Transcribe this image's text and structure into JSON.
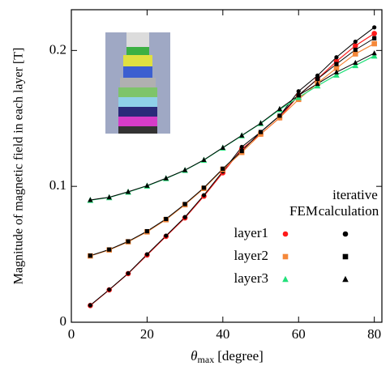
{
  "chart_data": {
    "type": "line",
    "xlabel": {
      "symbol": "θ",
      "subscript": "max",
      "unit": "[degree]"
    },
    "ylabel": "Magnitude of magnetic field in each layer [T]",
    "x": [
      5,
      10,
      15,
      20,
      25,
      30,
      35,
      40,
      45,
      50,
      55,
      60,
      65,
      70,
      75,
      80
    ],
    "xlim": [
      0,
      82
    ],
    "xticks": [
      0,
      20,
      40,
      60,
      80
    ],
    "ylim": [
      0,
      0.23
    ],
    "yticks": [
      0,
      0.1,
      0.2
    ],
    "legend_fem": "FEM",
    "legend_iterative": [
      "iterative",
      "calculation"
    ],
    "iterative_color": "#000000",
    "series": [
      {
        "name": "layer1",
        "color": "#ff1a1a",
        "marker": "circle",
        "fem": [
          0.0123,
          0.0238,
          0.0358,
          0.0495,
          0.0632,
          0.0768,
          0.0928,
          0.11,
          0.1275,
          0.1385,
          0.1505,
          0.167,
          0.179,
          0.192,
          0.2035,
          0.2125
        ],
        "iterative": [
          0.0125,
          0.024,
          0.036,
          0.05,
          0.0637,
          0.0774,
          0.0935,
          0.111,
          0.129,
          0.14,
          0.152,
          0.17,
          0.1815,
          0.195,
          0.2065,
          0.217
        ]
      },
      {
        "name": "layer2",
        "color": "#f5883a",
        "marker": "square",
        "fem": [
          0.0488,
          0.0532,
          0.0592,
          0.0665,
          0.0755,
          0.0865,
          0.0985,
          0.1125,
          0.125,
          0.1385,
          0.1505,
          0.164,
          0.176,
          0.187,
          0.1975,
          0.205
        ],
        "iterative": [
          0.049,
          0.0535,
          0.0595,
          0.067,
          0.076,
          0.087,
          0.099,
          0.113,
          0.126,
          0.14,
          0.152,
          0.167,
          0.179,
          0.19,
          0.2005,
          0.209
        ]
      },
      {
        "name": "layer3",
        "color": "#22e07a",
        "marker": "triangle",
        "fem": [
          0.0898,
          0.0918,
          0.0958,
          0.1003,
          0.1058,
          0.1118,
          0.1193,
          0.1283,
          0.1373,
          0.1463,
          0.1565,
          0.1655,
          0.174,
          0.182,
          0.189,
          0.196
        ],
        "iterative": [
          0.09,
          0.092,
          0.096,
          0.1005,
          0.106,
          0.112,
          0.1195,
          0.1285,
          0.1375,
          0.1465,
          0.157,
          0.167,
          0.1755,
          0.184,
          0.191,
          0.198
        ]
      }
    ]
  }
}
